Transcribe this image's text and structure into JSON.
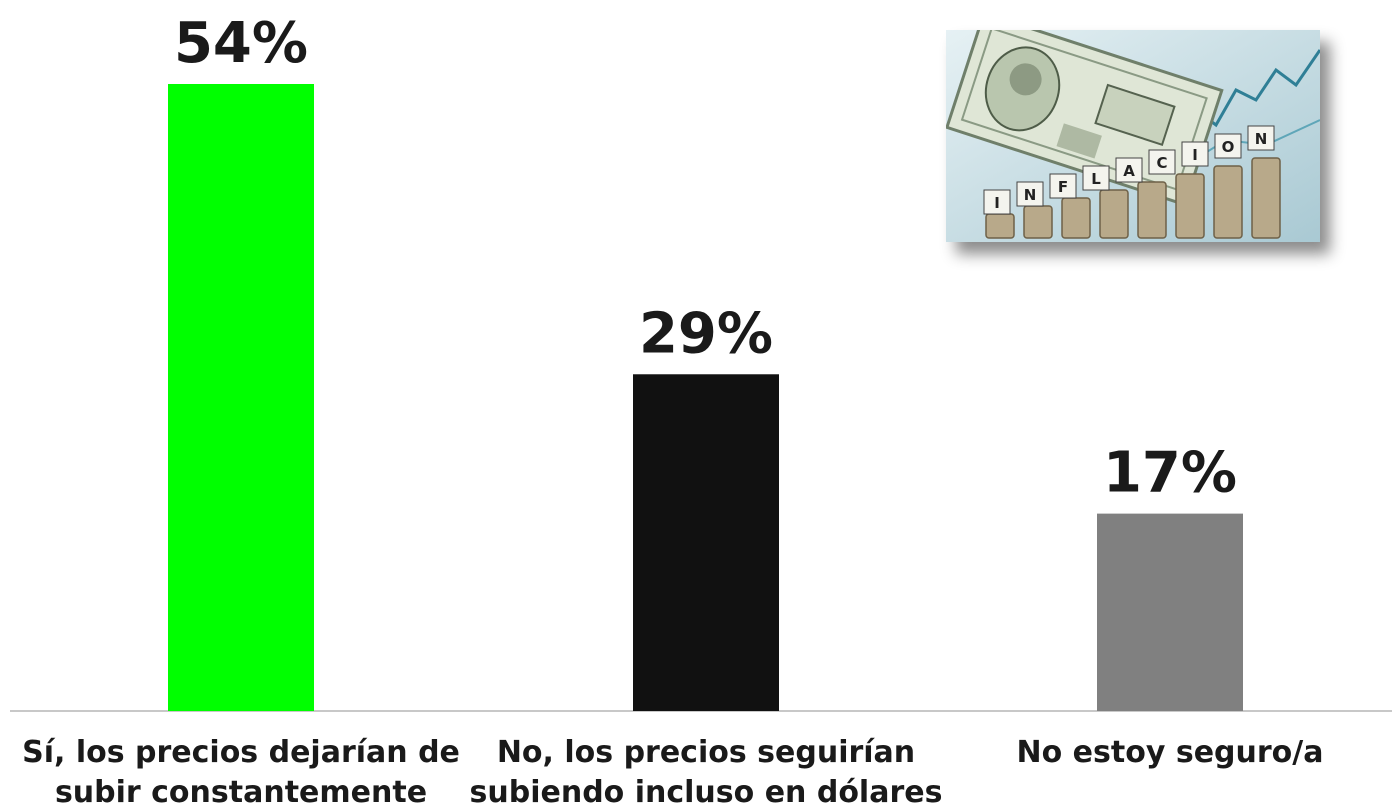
{
  "chart_data": {
    "type": "bar",
    "categories": [
      "Sí, los precios dejarían de subir constantemente",
      "No, los precios seguirían subiendo incluso en dólares",
      "No estoy seguro/a"
    ],
    "category_lines": [
      [
        "Sí, los precios dejarían de",
        "subir constantemente"
      ],
      [
        "No, los precios seguirían",
        "subiendo incluso en dólares"
      ],
      [
        "No estoy seguro/a"
      ]
    ],
    "values": [
      54,
      29,
      17
    ],
    "value_labels": [
      "54%",
      "29%",
      "17%"
    ],
    "colors": [
      "#00ff00",
      "#111111",
      "#808080"
    ],
    "ylim": [
      0,
      54
    ],
    "grid": false,
    "legend": "none"
  },
  "image": {
    "subject": "dollar bills and stacked coins with letter tiles",
    "tile_letters": [
      "I",
      "N",
      "F",
      "L",
      "A",
      "C",
      "I",
      "O",
      "N"
    ]
  }
}
